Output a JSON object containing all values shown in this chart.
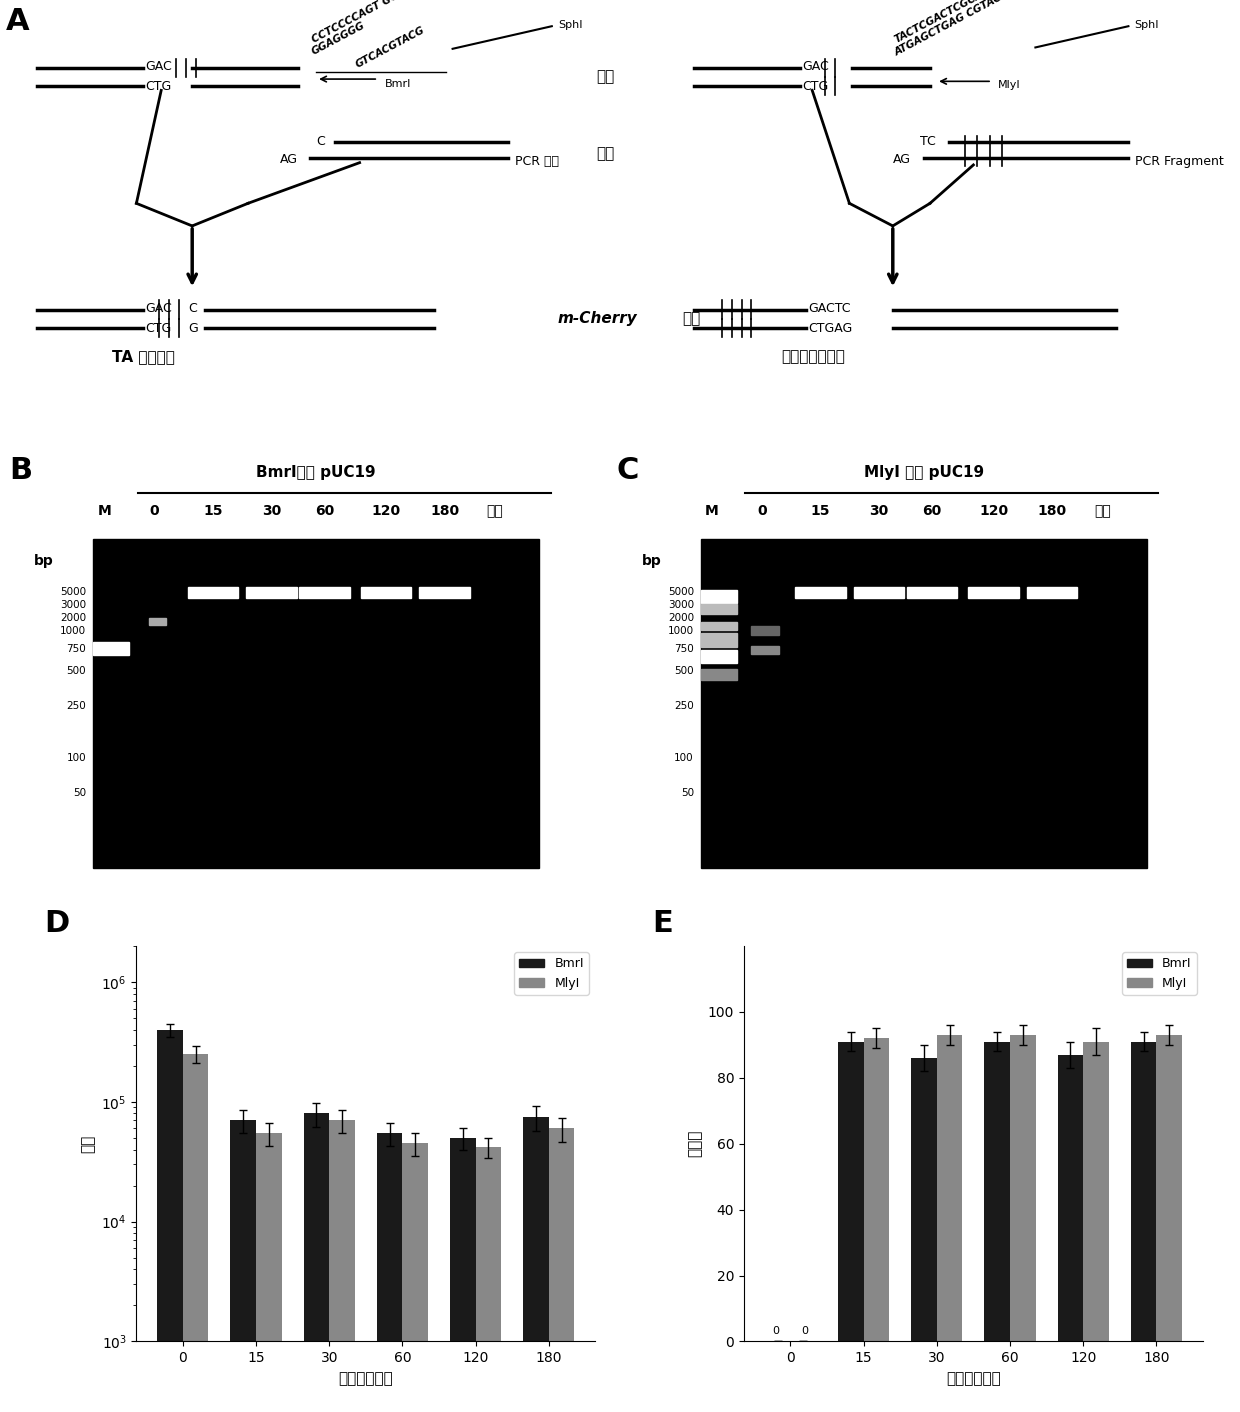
{
  "panel_labels": [
    "A",
    "B",
    "C",
    "D",
    "E"
  ],
  "gel_B_title": "BmrI消化 pUC19",
  "gel_C_title": "MlyI 消化 pUC19",
  "gel_lanes": [
    "M",
    "0",
    "15",
    "30",
    "60",
    "120",
    "180"
  ],
  "gel_unit": "分钟",
  "gel_bp_label": "bp",
  "bar_D_categories": [
    0,
    15,
    30,
    60,
    120,
    180
  ],
  "bar_D_BmrI": [
    400000,
    70000,
    80000,
    55000,
    50000,
    75000
  ],
  "bar_D_MlyI": [
    250000,
    55000,
    70000,
    45000,
    42000,
    60000
  ],
  "bar_D_BmrI_err": [
    50000,
    15000,
    18000,
    12000,
    10000,
    18000
  ],
  "bar_D_MlyI_err": [
    40000,
    12000,
    15000,
    10000,
    8000,
    14000
  ],
  "bar_E_BmrI": [
    0,
    91,
    86,
    91,
    87,
    91
  ],
  "bar_E_MlyI": [
    0,
    92,
    93,
    93,
    91,
    93
  ],
  "bar_E_BmrI_err": [
    0,
    3,
    4,
    3,
    4,
    3
  ],
  "bar_E_MlyI_err": [
    0,
    3,
    3,
    3,
    4,
    3
  ],
  "bar_D_ylabel": "效率",
  "bar_D_xlabel": "时间（分钟）",
  "bar_E_ylabel": "正确率",
  "bar_E_xlabel": "时间（分钟）",
  "legend_BmrI": "BmrI",
  "legend_MlyI": "MlyI",
  "bar_color_BmrI": "#1a1a1a",
  "bar_color_MlyI": "#888888",
  "enzyme_cut": "酶切",
  "ligation": "连接",
  "mcherry_italic": "m-Cherry",
  "mcherry_normal": " 基因",
  "left_panel_bottom": "TA 无痕组装",
  "right_panel_bottom": "平末端无痕组装"
}
